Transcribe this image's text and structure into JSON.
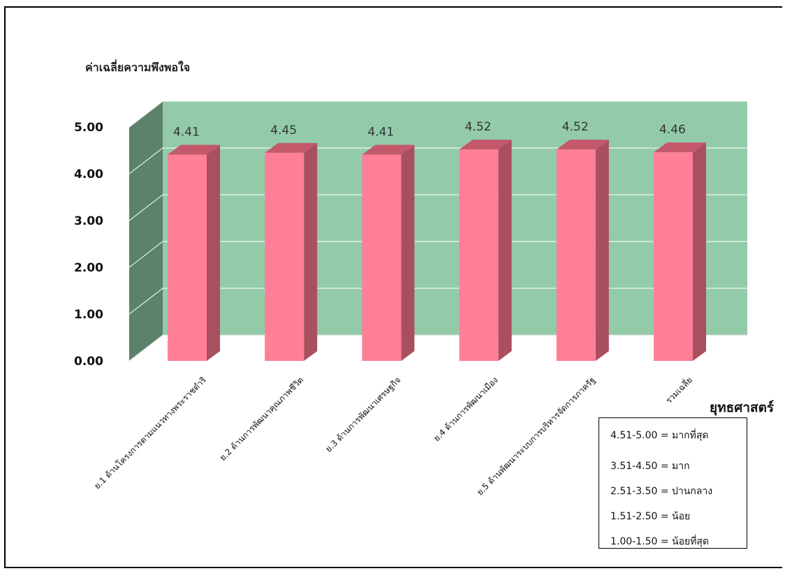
{
  "chart_data": {
    "type": "bar",
    "ylabel": "ค่าเฉลี่ยความพึงพอใจ",
    "xlabel": "ยุทธศาสตร์",
    "categories": [
      "ย.1 ด้านโครงการตามแนวทางพระราชดำริ",
      "ย.2 ด้านการพัฒนาคุณภาพชีวิต",
      "ย.3 ด้านการพัฒนาเศรษฐกิจ",
      "ย.4 ด้านการพัฒนาเมือง",
      "ย.5 ด้านพัฒนาระบบการบริหารจัดการภาครัฐ",
      "รวมเฉลี่ย"
    ],
    "values": [
      4.41,
      4.45,
      4.41,
      4.52,
      4.52,
      4.46
    ],
    "value_labels": [
      "4.41",
      "4.45",
      "4.41",
      "4.52",
      "4.52",
      "4.46"
    ],
    "yticks": [
      "0.00",
      "1.00",
      "2.00",
      "3.00",
      "4.00",
      "5.00"
    ],
    "ylim": [
      0,
      5
    ],
    "grid": true,
    "legend_placement": "bottom-right",
    "colors": {
      "bar_front": "#fe7f96",
      "bar_side": "#a94f5e",
      "bar_top": "#c4596b",
      "back_wall": "#93cba9",
      "side_wall": "#5b826a"
    }
  },
  "legend": {
    "items": [
      "4.51-5.00  = มากที่สุด",
      "3.51-4.50  = มาก",
      "2.51-3.50 = ปานกลาง",
      "1.51-2.50 = น้อย",
      "1.00-1.50 = น้อยที่สุด"
    ]
  }
}
